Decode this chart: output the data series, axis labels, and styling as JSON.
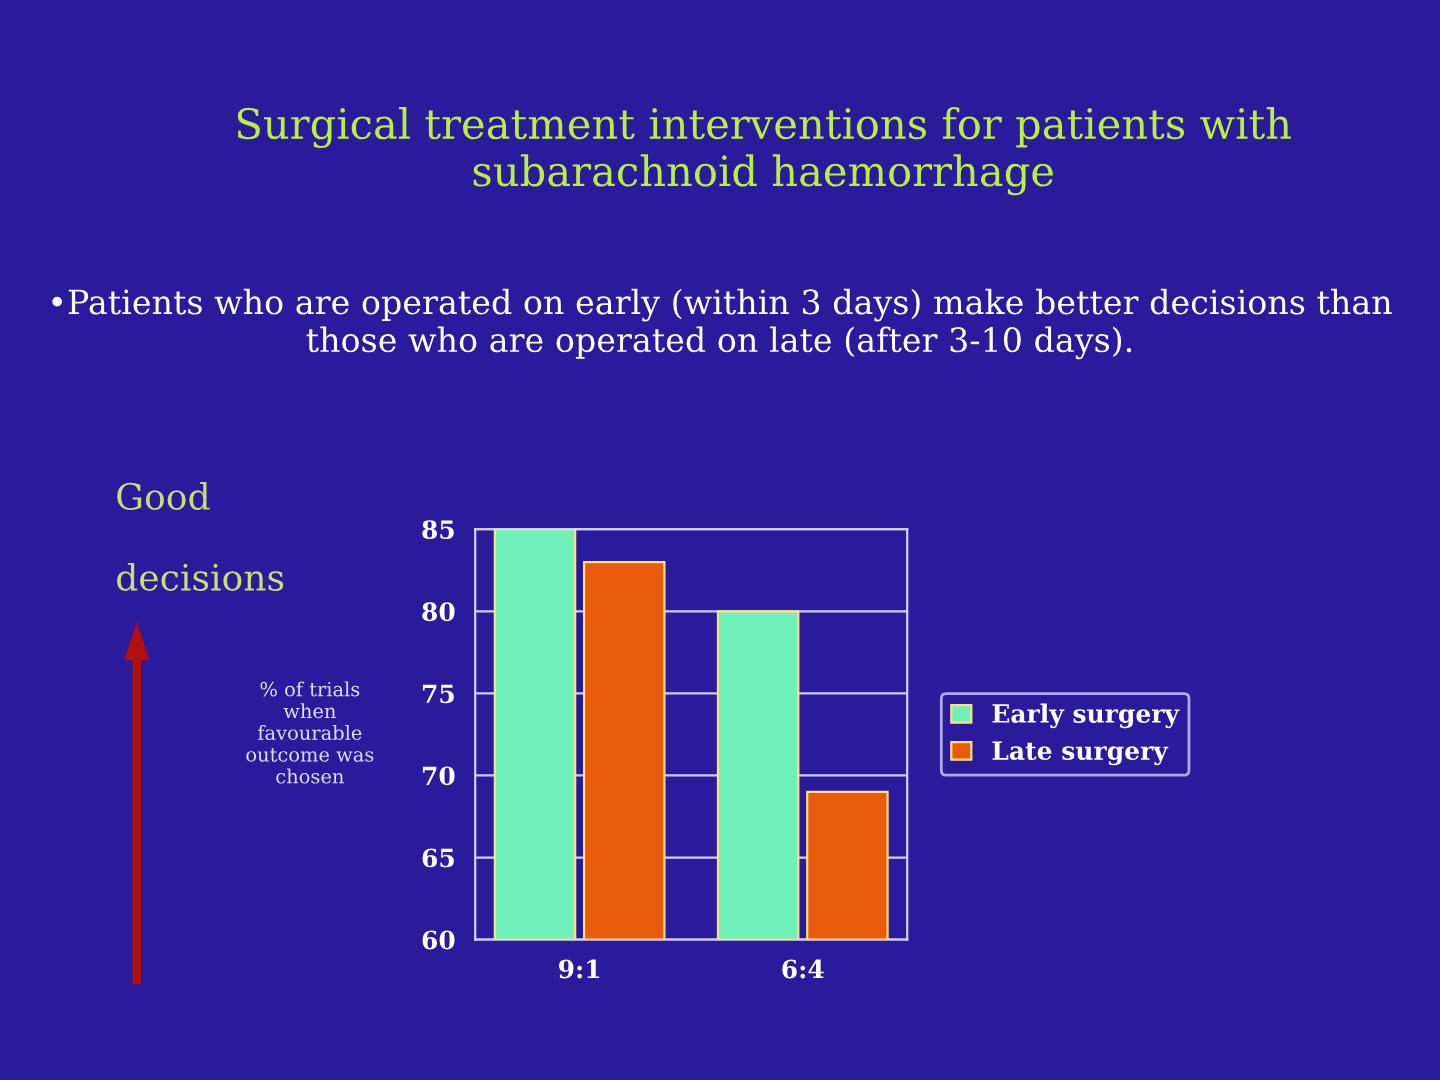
{
  "chart_data": {
    "type": "bar",
    "title": "Surgical treatment interventions for patients with subarachnoid haemorrhage",
    "subtitle": "•Patients who are operated on early (within 3 days) make better decisions than those who are operated on late (after 3-10 days).",
    "categories": [
      "9:1",
      "6:4"
    ],
    "series": [
      {
        "name": "Early surgery",
        "color": "#6ff0b8",
        "values": [
          85,
          80
        ]
      },
      {
        "name": "Late surgery",
        "color": "#e85a0c",
        "values": [
          83,
          69
        ]
      }
    ],
    "ylabel": "% of trials\nwhen\nfavourable\noutcome was\nchosen",
    "annotations": [
      "Good\n\ndecisions"
    ],
    "ylim": [
      60,
      85
    ],
    "yticks": [
      60,
      65,
      70,
      75,
      80,
      85
    ],
    "grid": "y",
    "legend": "right"
  }
}
